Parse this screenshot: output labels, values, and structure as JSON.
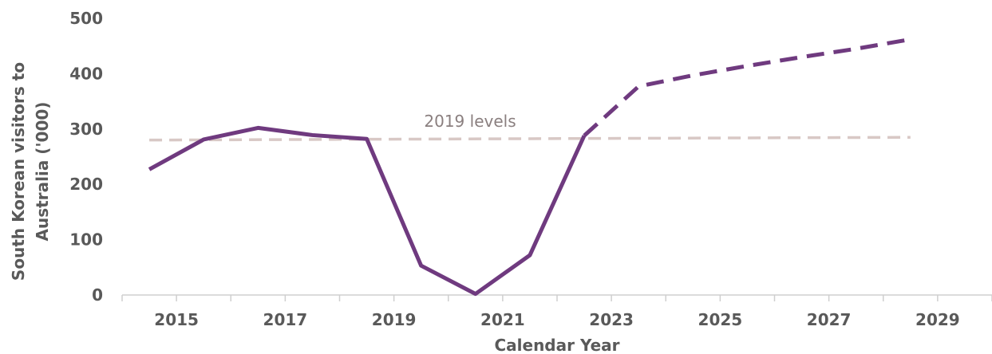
{
  "chart_data": {
    "type": "line",
    "title": "",
    "xlabel": "Calendar Year",
    "ylabel": "South Korean visitors to Australia ('000)",
    "ylabel_lines": [
      "South Korean visitors to",
      "Australia ('000)"
    ],
    "ylim": [
      0,
      500
    ],
    "xlim": [
      2014,
      2030
    ],
    "grid": false,
    "x_ticks": [
      2015,
      2017,
      2019,
      2021,
      2023,
      2025,
      2027,
      2029
    ],
    "y_ticks": [
      0,
      100,
      200,
      300,
      400,
      500
    ],
    "series": [
      {
        "style": "solid",
        "color": "#6f3a7f",
        "x": [
          2014.5,
          2015.5,
          2016.5,
          2017.5,
          2018.5,
          2019.5,
          2020.5,
          2021.5,
          2022.5
        ],
        "y": [
          227,
          281,
          302,
          289,
          282,
          53,
          2,
          72,
          288
        ]
      },
      {
        "style": "dashed",
        "color": "#6f3a7f",
        "x": [
          2022.5,
          2023.5,
          2024.5,
          2025.5,
          2026.5,
          2027.5,
          2028.5
        ],
        "y": [
          288,
          377,
          397,
          414,
          430,
          445,
          462
        ]
      },
      {
        "style": "dashed",
        "color": "#d8c8c5",
        "x": [
          2014.5,
          2028.5
        ],
        "y": [
          280,
          285
        ]
      }
    ],
    "annotations": [
      {
        "text": "2019 levels",
        "x": 2020.4,
        "y": 304
      }
    ]
  }
}
